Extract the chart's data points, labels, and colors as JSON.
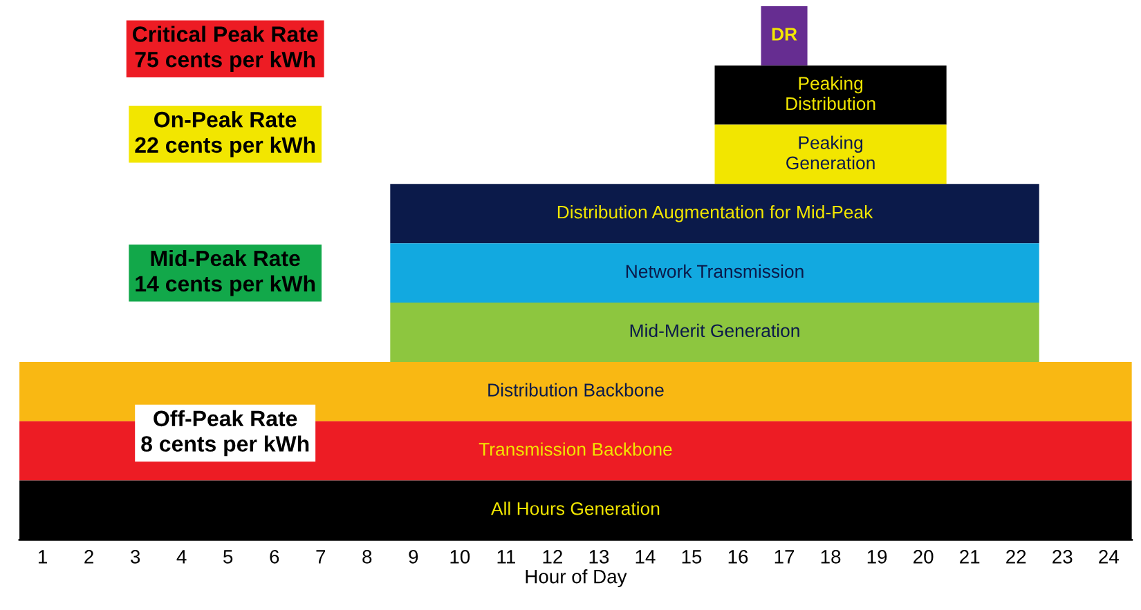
{
  "chart_data": {
    "type": "bar",
    "orientation": "horizontal",
    "xlabel": "Hour of Day",
    "tick_labels": "x",
    "grid": false,
    "legend": false,
    "categories": [
      "DR",
      "Peaking\nDistribution",
      "Peaking\nGeneration",
      "Distribution Augmentation for Mid-Peak",
      "Network Transmission",
      "Mid-Merit Generation",
      "Distribution Backbone",
      "Transmission Backbone",
      "All Hours Generation"
    ],
    "base": [
      16.5,
      15.5,
      15.5,
      8.5,
      8.5,
      8.5,
      0.5,
      0.5,
      0.5
    ],
    "values": [
      1,
      5,
      5,
      14,
      14,
      14,
      24,
      24,
      24
    ],
    "colors": [
      "#662d91",
      "#000000",
      "#f2e600",
      "#0b1a4a",
      "#12a9e0",
      "#8dc63f",
      "#f9b813",
      "#ed1c24",
      "#000000"
    ],
    "xlim": [
      0.5,
      24.5
    ],
    "xticks": [
      1,
      2,
      3,
      4,
      5,
      6,
      7,
      8,
      9,
      10,
      11,
      12,
      13,
      14,
      15,
      16,
      17,
      18,
      19,
      20,
      21,
      22,
      23,
      24
    ],
    "annotations": [
      "Critical Peak Rate\n75 cents per kWh",
      "On-Peak Rate\n22 cents per kWh",
      "Mid-Peak Rate\n14 cents per kWh",
      "Off-Peak Rate\n8 cents per kWh"
    ]
  }
}
